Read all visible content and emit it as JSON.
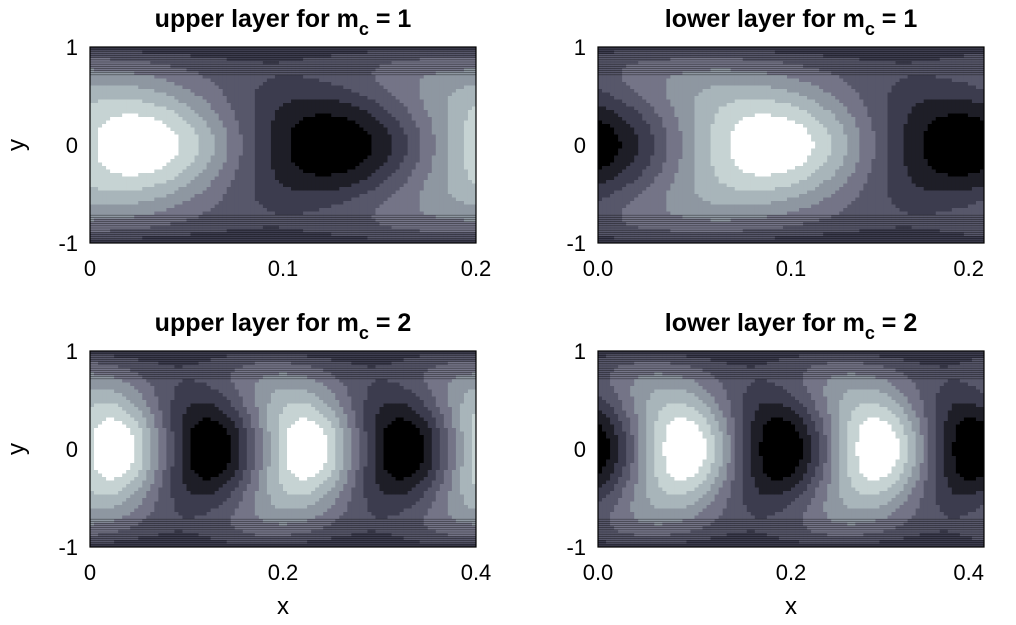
{
  "chart_data": [
    {
      "type": "heatmap",
      "subtype": "filled-contour",
      "title_main": "upper layer for m",
      "title_sub": "c",
      "title_tail": " = 1",
      "xlabel": "",
      "ylabel": "y",
      "xlim": [
        0,
        0.2
      ],
      "ylim": [
        -1,
        1
      ],
      "xticks": [
        "0",
        "0.1",
        "0.2"
      ],
      "yticks": [
        "1",
        "0",
        "-1"
      ],
      "colormap": "bone",
      "grid": false,
      "field": {
        "period": 0.2,
        "phase": 0.025,
        "crest_x": [
          0.025
        ],
        "trough_x": [
          0.125
        ],
        "tilt": "backward"
      }
    },
    {
      "type": "heatmap",
      "subtype": "filled-contour",
      "title_main": "lower layer for m",
      "title_sub": "c",
      "title_tail": " = 1",
      "xlabel": "",
      "ylabel": "",
      "xlim": [
        0,
        0.2
      ],
      "ylim": [
        -1,
        1
      ],
      "xticks": [
        "0.0",
        "0.1",
        "0.2"
      ],
      "yticks": [
        "1",
        "0",
        "-1"
      ],
      "colormap": "bone",
      "grid": false,
      "field": {
        "period": 0.2,
        "phase": 0.09,
        "crest_x": [
          0.09
        ],
        "trough_x": [
          0.0,
          0.19
        ],
        "tilt": "backward"
      }
    },
    {
      "type": "heatmap",
      "subtype": "filled-contour",
      "title_main": "upper layer for m",
      "title_sub": "c",
      "title_tail": " = 2",
      "xlabel": "x",
      "ylabel": "y",
      "xlim": [
        0,
        0.4
      ],
      "ylim": [
        -1,
        1
      ],
      "xticks": [
        "0",
        "0.2",
        "0.4"
      ],
      "yticks": [
        "1",
        "0",
        "-1"
      ],
      "colormap": "bone",
      "grid": false,
      "field": {
        "period": 0.2,
        "phase": 0.025,
        "crest_x": [
          0.025,
          0.225
        ],
        "trough_x": [
          0.125,
          0.325
        ],
        "tilt": "backward"
      }
    },
    {
      "type": "heatmap",
      "subtype": "filled-contour",
      "title_main": "lower layer for m",
      "title_sub": "c",
      "title_tail": " = 2",
      "xlabel": "x",
      "ylabel": "",
      "xlim": [
        0,
        0.4
      ],
      "ylim": [
        -1,
        1
      ],
      "xticks": [
        "0.0",
        "0.2",
        "0.4"
      ],
      "yticks": [
        "1",
        "0",
        "-1"
      ],
      "colormap": "bone",
      "grid": false,
      "field": {
        "period": 0.2,
        "phase": 0.09,
        "crest_x": [
          0.09,
          0.29
        ],
        "trough_x": [
          0.0,
          0.19,
          0.39
        ],
        "tilt": "backward"
      }
    }
  ]
}
